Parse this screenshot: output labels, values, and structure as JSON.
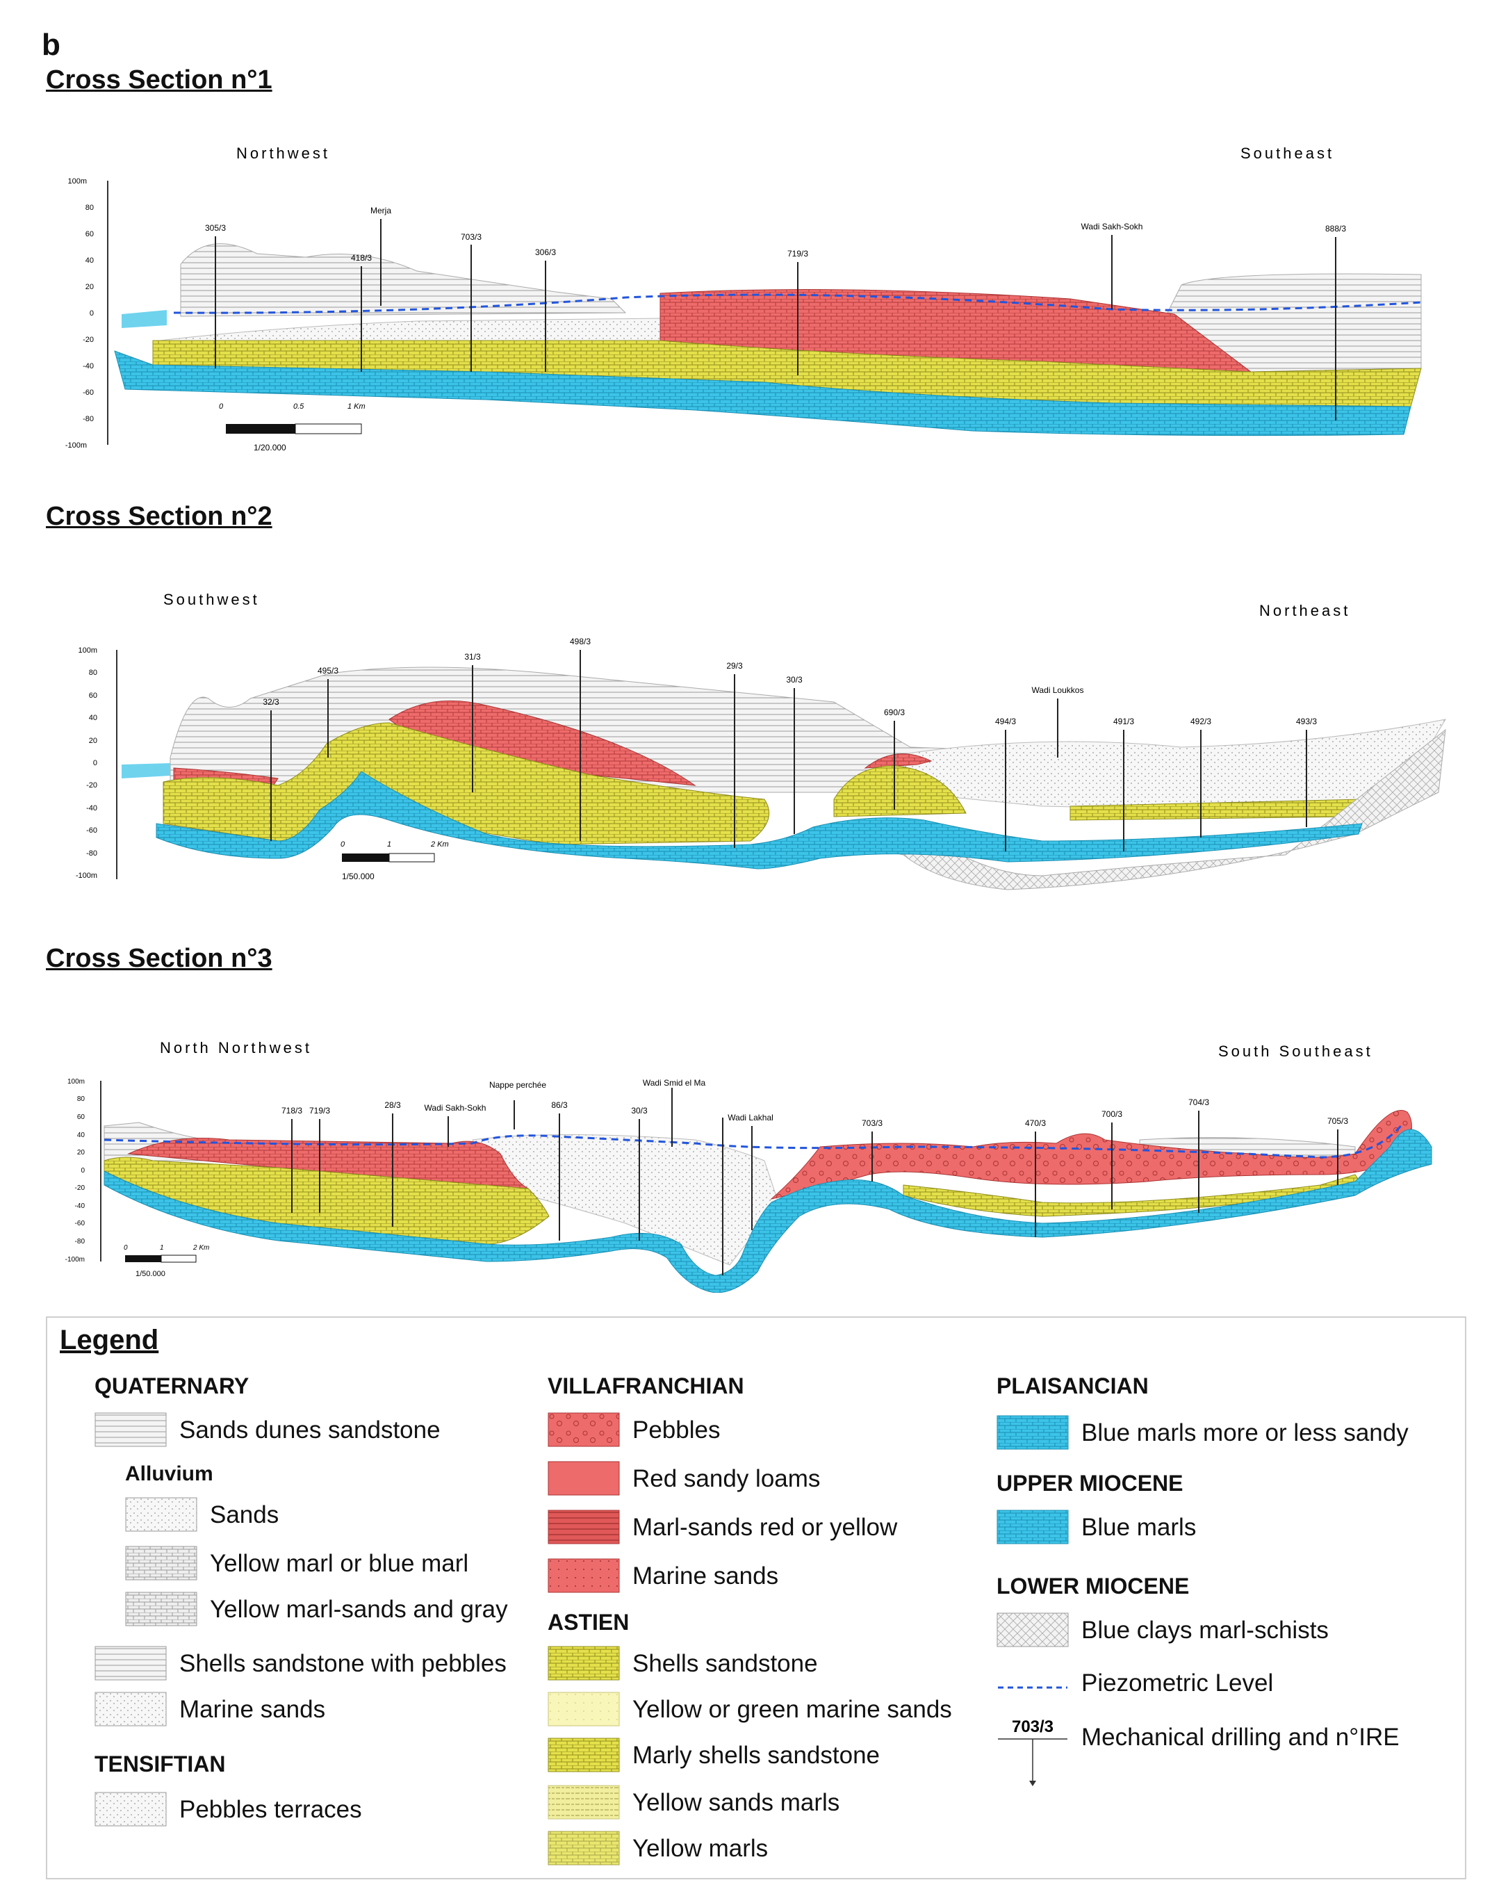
{
  "panel_letter": "b",
  "sections": [
    {
      "title": "Cross Section n°1",
      "dir_left": "Northwest",
      "dir_right": "Southeast",
      "axis_ticks": [
        "100m",
        "80",
        "60",
        "40",
        "20",
        "0",
        "-20",
        "-40",
        "-60",
        "-80",
        "-100m"
      ],
      "scale_ticks": [
        "0",
        "0.5",
        "1 Km"
      ],
      "scale_ratio": "1/20.000",
      "wells": [
        "305/3",
        "418/3",
        "703/3",
        "306/3",
        "719/3",
        "888/3"
      ],
      "features": [
        "Merja",
        "Wadi Sakh-Sokh"
      ]
    },
    {
      "title": "Cross Section n°2",
      "dir_left": "Southwest",
      "dir_right": "Northeast",
      "axis_ticks": [
        "100m",
        "80",
        "60",
        "40",
        "20",
        "0",
        "-20",
        "-40",
        "-60",
        "-80",
        "-100m"
      ],
      "scale_ticks": [
        "0",
        "1",
        "2 Km"
      ],
      "scale_ratio": "1/50.000",
      "wells": [
        "495/3",
        "32/3",
        "31/3",
        "498/3",
        "29/3",
        "30/3",
        "690/3",
        "494/3",
        "491/3",
        "492/3",
        "493/3"
      ],
      "features": [
        "Wadi Loukkos"
      ]
    },
    {
      "title": "Cross Section n°3",
      "dir_left": "North Northwest",
      "dir_right": "South Southeast",
      "axis_ticks": [
        "100m",
        "80",
        "60",
        "40",
        "20",
        "0",
        "-20",
        "-40",
        "-60",
        "-80",
        "-100m"
      ],
      "scale_ticks": [
        "0",
        "1",
        "2 Km"
      ],
      "scale_ratio": "1/50.000",
      "wells": [
        "718/3",
        "719/3",
        "28/3",
        "86/3",
        "30/3",
        "703/3",
        "470/3",
        "700/3",
        "704/3",
        "705/3"
      ],
      "features": [
        "Wadi Sakh-Sokh",
        "Nappe perchée",
        "Wadi Smid el Ma",
        "Wadi Lakhal"
      ]
    }
  ],
  "legend": {
    "title": "Legend",
    "col1": {
      "quaternary": "QUATERNARY",
      "sands_dunes": "Sands dunes sandstone",
      "alluvium": "Alluvium",
      "sands": "Sands",
      "yellow_marl": "Yellow marl or blue marl",
      "yellow_marl_sands": "Yellow marl-sands and gray",
      "shells_pebbles": "Shells sandstone with pebbles",
      "marine_sands": "Marine sands",
      "tensiftian": "TENSIFTIAN",
      "pebbles_terraces": "Pebbles terraces"
    },
    "col2": {
      "villafranchian": "VILLAFRANCHIAN",
      "pebbles": "Pebbles",
      "red_sandy": "Red sandy loams",
      "marl_sands_red": "Marl-sands red or yellow",
      "marine_sands": "Marine sands",
      "astien": "ASTIEN",
      "shells_sandstone": "Shells sandstone",
      "yellow_green": "Yellow or green marine sands",
      "marly_shells": "Marly shells sandstone",
      "yellow_sands_marls": "Yellow sands marls",
      "yellow_marls": "Yellow marls"
    },
    "col3": {
      "plaisancian": "PLAISANCIAN",
      "blue_marls_sandy": "Blue marls more or less sandy",
      "upper_miocene": "UPPER MIOCENE",
      "blue_marls": "Blue marls",
      "lower_miocene": "LOWER MIOCENE",
      "blue_clays": "Blue clays marl-schists",
      "piezometric": "Piezometric Level",
      "drill_sample": "703/3",
      "drilling": "Mechanical drilling and n°IRE"
    }
  },
  "colors": {
    "blue": "#3cc3e8",
    "yellow": "#e4e04a",
    "red": "#ee6b6b",
    "gray": "#e6e6e6",
    "piezo": "#2255dd"
  }
}
